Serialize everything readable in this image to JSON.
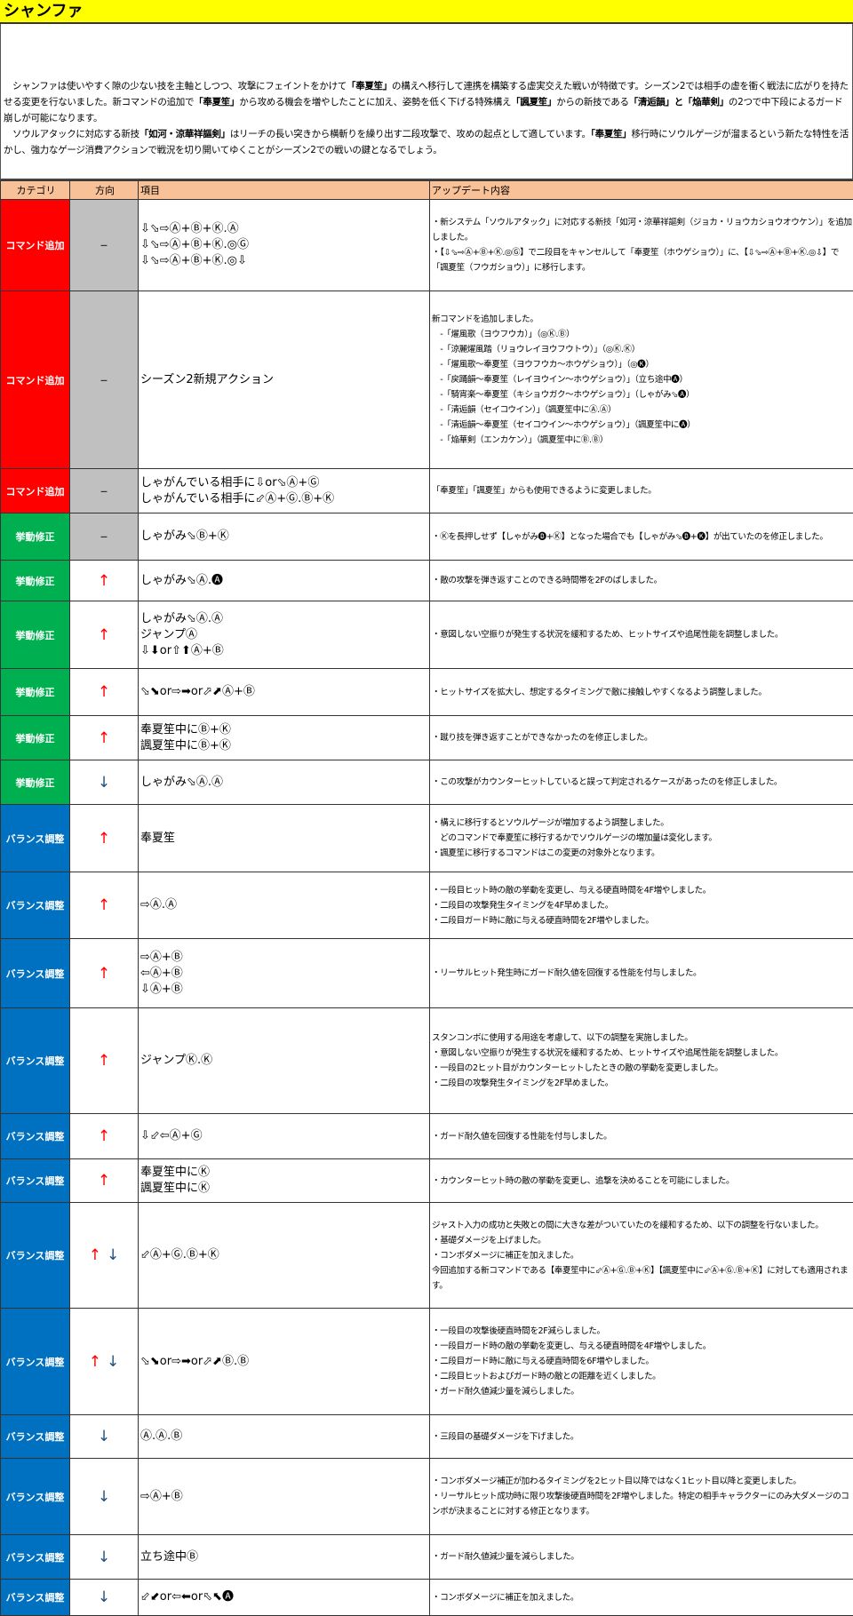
{
  "title": "シャンファ",
  "colors": {
    "コマンド追加": "#ff0000",
    "挙動修正": "#00b050",
    "バランス調整": "#0070c0",
    "dash_bg": "#c0c0c0",
    "header_bg": "#f8c197",
    "title_bg": "#ffff00",
    "up": "#ff0000",
    "down": "#1f4e79"
  },
  "intro": [
    [
      {
        "t": "シャンファは使いやすく隙の少ない技を主軸としつつ、攻撃にフェイントをかけて"
      },
      {
        "t": "「奉夏笙」",
        "b": true
      },
      {
        "t": "の構えへ移行して連携を構築する虚実交えた戦いが特徴です。シーズン2では相手の虚を衝く戦法に広がりを持たせる変更を行ないました。新コマンドの追加で"
      },
      {
        "t": "「奉夏笙」",
        "b": true
      },
      {
        "t": "から攻める機会を増やしたことに加え、姿勢を低く下げる特殊構え"
      },
      {
        "t": "「諷夏笙」",
        "b": true
      },
      {
        "t": "からの新技である"
      },
      {
        "t": "「清逅韻」と「焔華剣」",
        "b": true
      },
      {
        "t": "の2つで中下段によるガード崩しが可能になります。"
      }
    ],
    [
      {
        "t": "ソウルアタックに対応する新技"
      },
      {
        "t": "「如河・涼華祥謳剣」",
        "b": true
      },
      {
        "t": "はリーチの長い突きから横斬りを繰り出す二段攻撃で、攻めの起点として適しています。"
      },
      {
        "t": "「奉夏笙」",
        "b": true
      },
      {
        "t": "移行時にソウルゲージが溜まるという新たな特性を活かし、強力なゲージ消費アクションで戦況を切り開いてゆくことがシーズン2での戦いの鍵となるでしょう。"
      }
    ]
  ],
  "headers": {
    "category": "カテゴリ",
    "direction": "方向",
    "item": "項目",
    "content": "アップデート内容"
  },
  "rows": [
    {
      "category": "コマンド追加",
      "direction": "–",
      "item": [
        "⇩⬂⇨Ⓐ+Ⓑ+Ⓚ.Ⓐ",
        "⇩⬂⇨Ⓐ+Ⓑ+Ⓚ.◎Ⓖ",
        "⇩⬂⇨Ⓐ+Ⓑ+Ⓚ.◎⇩"
      ],
      "content": [
        "・新システム「ソウルアタック」に対応する新技「如河・涼華祥謳剣（ジョカ・リョウカショウオウケン）」を追加しました。",
        "・【⇩⬂⇨Ⓐ+Ⓑ+Ⓚ.◎Ⓖ】で二段目をキャンセルして「奉夏笙（ホウゲショウ）」に、【⇩⬂⇨Ⓐ+Ⓑ+Ⓚ.◎⇩】で「諷夏笙（フウガショウ）」に移行します。"
      ]
    },
    {
      "category": "コマンド追加",
      "direction": "–",
      "item": [
        "シーズン2新規アクション"
      ],
      "content": [
        "新コマンドを追加しました。",
        "　-「燿風歌（ヨウフウカ）」（◎Ⓚ.Ⓑ）",
        "　-「涼麗燿風踏（リョウレイヨウフウトウ）」（◎Ⓚ.Ⓚ）",
        "　-「燿風歌～奉夏笙（ヨウフウカ～ホウゲショウ）」（◎🅚）",
        "　-「戻踊韻～奉夏笙（レイヨウイン～ホウゲショウ）」（立ち途中🅐）",
        "　-「騎宵楽～奉夏笙（キショウガク～ホウゲショウ）」（しゃがみ⬂🅐）",
        "　-「清逅韻（セイコウイン）」（諷夏笙中にⒶ.Ⓐ）",
        "　-「清逅韻～奉夏笙（セイコウイン～ホウゲショウ）」（諷夏笙中に🅐）",
        "　-「焔華剣（エンカケン）」（諷夏笙中にⒷ.Ⓑ）"
      ]
    },
    {
      "category": "コマンド追加",
      "direction": "–",
      "item": [
        "しゃがんでいる相手に⇩or⬂Ⓐ+Ⓖ",
        "しゃがんでいる相手に⬃Ⓐ+Ⓖ.Ⓑ+Ⓚ"
      ],
      "content": [
        "「奉夏笙」「諷夏笙」からも使用できるように変更しました。"
      ]
    },
    {
      "category": "挙動修正",
      "direction": "–",
      "item": [
        "しゃがみ⬂Ⓑ+Ⓚ"
      ],
      "content": [
        "・Ⓚを長押しせず【しゃがみ🅑+Ⓚ】となった場合でも【しゃがみ⬂🅑+🅚】が出ていたのを修正しました。"
      ]
    },
    {
      "category": "挙動修正",
      "direction": "↑",
      "item": [
        "しゃがみ⬂Ⓐ.🅐"
      ],
      "content": [
        "・敵の攻撃を弾き返すことのできる時間帯を2Fのばしました。"
      ]
    },
    {
      "category": "挙動修正",
      "direction": "↑",
      "item": [
        "しゃがみ⬂Ⓐ.Ⓐ",
        "ジャンプⒶ",
        "⇩⬇or⇧⬆Ⓐ+Ⓑ"
      ],
      "content": [
        "・意図しない空振りが発生する状況を緩和するため、ヒットサイズや追尾性能を調整しました。"
      ]
    },
    {
      "category": "挙動修正",
      "direction": "↑",
      "item": [
        "⬂⬊or⇨➡or⬀⬈Ⓐ+Ⓑ"
      ],
      "content": [
        "・ヒットサイズを拡大し、想定するタイミングで敵に接触しやすくなるよう調整しました。"
      ]
    },
    {
      "category": "挙動修正",
      "direction": "↑",
      "item": [
        "奉夏笙中にⒷ+Ⓚ",
        "諷夏笙中にⒷ+Ⓚ"
      ],
      "content": [
        "・蹴り技を弾き返すことができなかったのを修正しました。"
      ]
    },
    {
      "category": "挙動修正",
      "direction": "↓",
      "item": [
        "しゃがみ⬂Ⓐ.Ⓐ"
      ],
      "content": [
        "・この攻撃がカウンターヒットしていると誤って判定されるケースがあったのを修正しました。"
      ]
    },
    {
      "category": "バランス調整",
      "direction": "↑",
      "item": [
        "奉夏笙"
      ],
      "content": [
        "・構えに移行するとソウルゲージが増加するよう調整しました。",
        "　どのコマンドで奉夏笙に移行するかでソウルゲージの増加量は変化します。",
        "・諷夏笙に移行するコマンドはこの変更の対象外となります。"
      ]
    },
    {
      "category": "バランス調整",
      "direction": "↑",
      "item": [
        "⇨Ⓐ.Ⓐ"
      ],
      "content": [
        "・一段目ヒット時の敵の挙動を変更し、与える硬直時間を4F増やしました。",
        "・二段目の攻撃発生タイミングを4F早めました。",
        "・二段目ガード時に敵に与える硬直時間を2F増やしました。"
      ]
    },
    {
      "category": "バランス調整",
      "direction": "↑",
      "item": [
        "⇨Ⓐ+Ⓑ",
        "⇦Ⓐ+Ⓑ",
        "⇩Ⓐ+Ⓑ"
      ],
      "content": [
        "・リーサルヒット発生時にガード耐久値を回復する性能を付与しました。"
      ]
    },
    {
      "category": "バランス調整",
      "direction": "↑",
      "item": [
        "ジャンプⓀ.Ⓚ"
      ],
      "content": [
        "スタンコンボに使用する用途を考慮して、以下の調整を実施しました。",
        "・意図しない空振りが発生する状況を緩和するため、ヒットサイズや追尾性能を調整しました。",
        "・一段目の2ヒット目がカウンターヒットしたときの敵の挙動を変更しました。",
        "・二段目の攻撃発生タイミングを2F早めました。"
      ]
    },
    {
      "category": "バランス調整",
      "direction": "↑",
      "item": [
        "⇩⬃⇦Ⓐ+Ⓖ"
      ],
      "content": [
        "・ガード耐久値を回復する性能を付与しました。"
      ]
    },
    {
      "category": "バランス調整",
      "direction": "↑",
      "item": [
        "奉夏笙中にⓀ",
        "諷夏笙中にⓀ"
      ],
      "content": [
        "・カウンターヒット時の敵の挙動を変更し、追撃を決めることを可能にしました。"
      ]
    },
    {
      "category": "バランス調整",
      "direction": "↑↓",
      "item": [
        "⬃Ⓐ+Ⓖ.Ⓑ+Ⓚ"
      ],
      "content": [
        "ジャスト入力の成功と失敗との間に大きな差がついていたのを緩和するため、以下の調整を行ないました。",
        "・基礎ダメージを上げました。",
        "・コンボダメージに補正を加えました。",
        "今回追加する新コマンドである【奉夏笙中に⬃Ⓐ+Ⓖ.Ⓑ+Ⓚ】【諷夏笙中に⬃Ⓐ+Ⓖ.Ⓑ+Ⓚ】に対しても適用されます。"
      ]
    },
    {
      "category": "バランス調整",
      "direction": "↑↓",
      "item": [
        "⬂⬊or⇨➡or⬀⬈Ⓑ.Ⓑ"
      ],
      "content": [
        "・一段目の攻撃後硬直時間を2F減らしました。",
        "・一段目ガード時の敵の挙動を変更し、与える硬直時間を4F増やしました。",
        "・二段目ガード時に敵に与える硬直時間を6F増やしました。",
        "・二段目ヒットおよびガード時の敵との距離を近くしました。",
        "・ガード耐久値減少量を減らしました。"
      ]
    },
    {
      "category": "バランス調整",
      "direction": "↓",
      "item": [
        "Ⓐ.Ⓐ.Ⓑ"
      ],
      "content": [
        "・三段目の基礎ダメージを下げました。"
      ]
    },
    {
      "category": "バランス調整",
      "direction": "↓",
      "item": [
        "⇨Ⓐ+Ⓑ"
      ],
      "content": [
        "・コンボダメージ補正が加わるタイミングを2ヒット目以降ではなく1ヒット目以降と変更しました。",
        "・リーサルヒット成功時に限り攻撃後硬直時間を2F増やしました。特定の相手キャラクターにのみ大ダメージのコンボが決まることに対する修正となります。"
      ]
    },
    {
      "category": "バランス調整",
      "direction": "↓",
      "item": [
        "立ち途中Ⓑ"
      ],
      "content": [
        "・ガード耐久値減少量を減らしました。"
      ]
    },
    {
      "category": "バランス調整",
      "direction": "↓",
      "item": [
        "⬃⬋or⇦⬅or⬁⬉🅐"
      ],
      "content": [
        "・コンボダメージに補正を加えました。"
      ]
    }
  ]
}
